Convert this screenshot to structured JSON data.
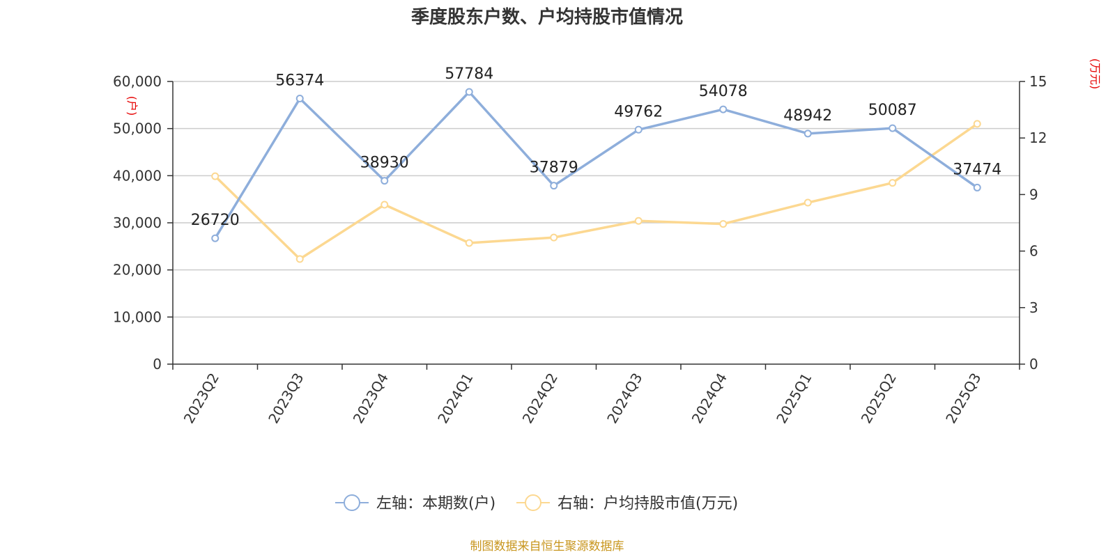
{
  "chart_data": {
    "type": "line",
    "title": "季度股东户数、户均持股市值情况",
    "categories": [
      "2023Q2",
      "2023Q3",
      "2023Q4",
      "2024Q1",
      "2024Q2",
      "2024Q3",
      "2024Q4",
      "2025Q1",
      "2025Q2",
      "2025Q3"
    ],
    "left_axis": {
      "unit": "(户)",
      "ylim": [
        0,
        60000
      ],
      "ticks": [
        "0",
        "10,000",
        "20,000",
        "30,000",
        "40,000",
        "50,000",
        "60,000"
      ]
    },
    "right_axis": {
      "unit": "(万元)",
      "ylim": [
        0,
        15
      ],
      "ticks": [
        "0",
        "3",
        "6",
        "9",
        "12",
        "15"
      ]
    },
    "series": [
      {
        "name": "左轴：本期数(户)",
        "axis": "left",
        "color": "#8eaedb",
        "values": [
          26720,
          56374,
          38930,
          57784,
          37879,
          49762,
          54078,
          48942,
          50087,
          37474
        ],
        "labels": [
          "26720",
          "56374",
          "38930",
          "57784",
          "37879",
          "49762",
          "54078",
          "48942",
          "50087",
          "37474"
        ]
      },
      {
        "name": "右轴：户均持股市值(万元)",
        "axis": "right",
        "color": "#fcd891",
        "values": [
          9.97,
          5.58,
          8.46,
          6.43,
          6.72,
          7.6,
          7.44,
          8.57,
          9.62,
          12.75
        ]
      }
    ],
    "grid": true,
    "legend_position": "bottom-center"
  },
  "source": "制图数据来自恒生聚源数据库"
}
